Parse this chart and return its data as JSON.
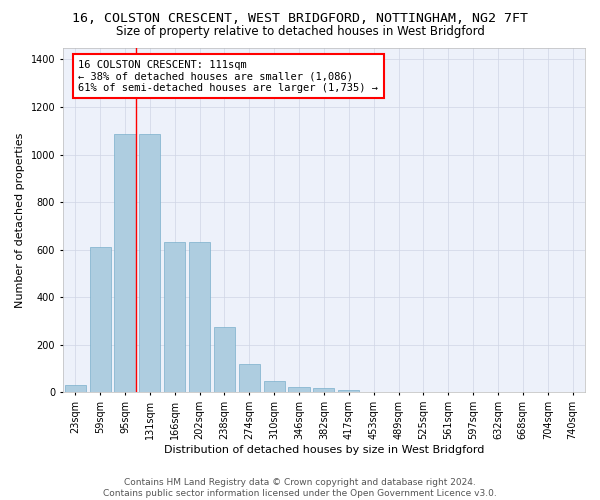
{
  "title": "16, COLSTON CRESCENT, WEST BRIDGFORD, NOTTINGHAM, NG2 7FT",
  "subtitle": "Size of property relative to detached houses in West Bridgford",
  "xlabel": "Distribution of detached houses by size in West Bridgford",
  "ylabel": "Number of detached properties",
  "footer_line1": "Contains HM Land Registry data © Crown copyright and database right 2024.",
  "footer_line2": "Contains public sector information licensed under the Open Government Licence v3.0.",
  "bin_labels": [
    "23sqm",
    "59sqm",
    "95sqm",
    "131sqm",
    "166sqm",
    "202sqm",
    "238sqm",
    "274sqm",
    "310sqm",
    "346sqm",
    "382sqm",
    "417sqm",
    "453sqm",
    "489sqm",
    "525sqm",
    "561sqm",
    "597sqm",
    "632sqm",
    "668sqm",
    "704sqm",
    "740sqm"
  ],
  "bar_values": [
    30,
    610,
    1085,
    1085,
    630,
    630,
    275,
    120,
    47,
    22,
    20,
    10,
    0,
    0,
    0,
    0,
    0,
    0,
    0,
    0,
    0
  ],
  "bar_color": "#aecde0",
  "bar_edge_color": "#7ab0cb",
  "background_color": "#edf1fa",
  "grid_color": "#d0d5e5",
  "property_label": "16 COLSTON CRESCENT: 111sqm",
  "annotation_line1": "← 38% of detached houses are smaller (1,086)",
  "annotation_line2": "61% of semi-detached houses are larger (1,735) →",
  "vline_x_index": 2.44,
  "ylim": [
    0,
    1450
  ],
  "yticks": [
    0,
    200,
    400,
    600,
    800,
    1000,
    1200,
    1400
  ],
  "title_fontsize": 9.5,
  "subtitle_fontsize": 8.5,
  "xlabel_fontsize": 8,
  "ylabel_fontsize": 8,
  "tick_fontsize": 7,
  "annotation_fontsize": 7.5,
  "footer_fontsize": 6.5
}
